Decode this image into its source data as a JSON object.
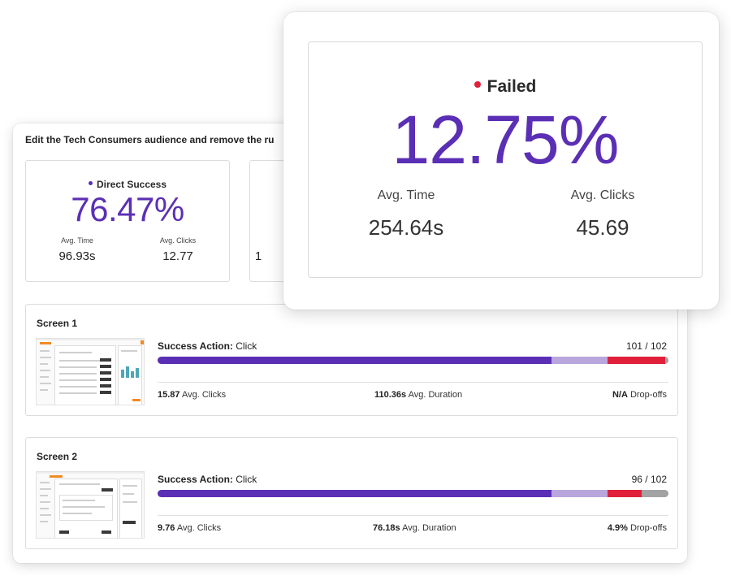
{
  "task": {
    "title": "Edit the Tech Consumers audience and remove the ru"
  },
  "metrics": {
    "direct_success": {
      "label": "Direct Success",
      "percent": "76.47%",
      "avg_time_label": "Avg. Time",
      "avg_time": "96.93s",
      "avg_clicks_label": "Avg. Clicks",
      "avg_clicks": "12.77",
      "dot_color": "#5a2fb0"
    },
    "second_card_partial": "1",
    "failed": {
      "label": "Failed",
      "percent": "12.75%",
      "avg_time_label": "Avg. Time",
      "avg_time": "254.64s",
      "avg_clicks_label": "Avg. Clicks",
      "avg_clicks": "45.69",
      "dot_color": "#e0203a"
    }
  },
  "colors": {
    "direct_success": "#5b2fb5",
    "indirect_success": "#b9a6dc",
    "failed": "#e0203a",
    "skipped": "#a3a3a3"
  },
  "screens": [
    {
      "title": "Screen 1",
      "action_label": "Success Action:",
      "action_value": "Click",
      "ratio": "101 / 102",
      "segments": [
        0.771,
        0.109,
        0.114,
        0.006
      ],
      "avg_clicks": "15.87",
      "avg_clicks_label": "Avg. Clicks",
      "avg_duration": "110.36s",
      "avg_duration_label": "Avg. Duration",
      "dropoffs": "N/A",
      "dropoffs_label": "Drop-offs"
    },
    {
      "title": "Screen 2",
      "action_label": "Success Action:",
      "action_value": "Click",
      "ratio": "96 / 102",
      "segments": [
        0.771,
        0.109,
        0.068,
        0.052
      ],
      "avg_clicks": "9.76",
      "avg_clicks_label": "Avg. Clicks",
      "avg_duration": "76.18s",
      "avg_duration_label": "Avg. Duration",
      "dropoffs": "4.9%",
      "dropoffs_label": "Drop-offs"
    }
  ]
}
